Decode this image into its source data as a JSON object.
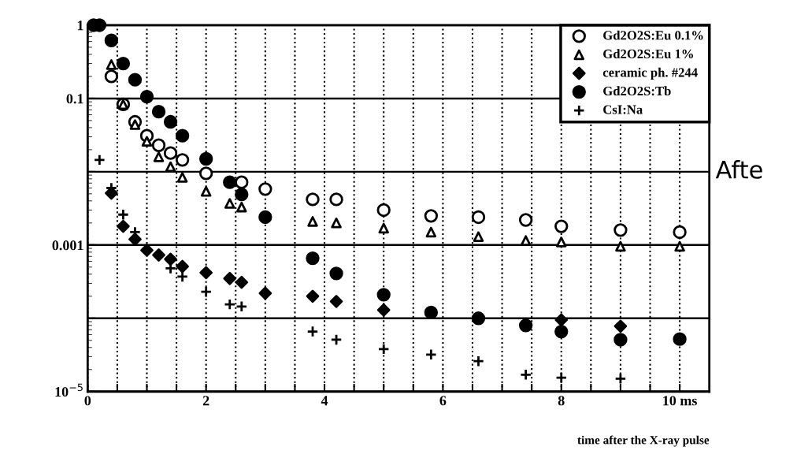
{
  "chart_data": {
    "type": "scatter",
    "xlabel": "time after the X-ray pulse",
    "xlim": [
      0,
      10.5
    ],
    "ylim": [
      1e-05,
      1
    ],
    "log": "y",
    "xticks": [
      0,
      {
        "value": 0.5,
        "label": null
      },
      {
        "value": 1,
        "label": null
      },
      {
        "value": 1.5,
        "label": null
      },
      2,
      {
        "value": 2.5,
        "label": null
      },
      {
        "value": 3,
        "label": null
      },
      {
        "value": 3.5,
        "label": null
      },
      4,
      {
        "value": 4.5,
        "label": null
      },
      {
        "value": 5,
        "label": null
      },
      {
        "value": 5.5,
        "label": null
      },
      6,
      {
        "value": 6.5,
        "label": null
      },
      {
        "value": 7,
        "label": null
      },
      {
        "value": 7.5,
        "label": null
      },
      8,
      {
        "value": 8.5,
        "label": null
      },
      {
        "value": 9,
        "label": null
      },
      {
        "value": 9.5,
        "label": null
      },
      {
        "value": 10,
        "label": "10 ms"
      }
    ],
    "yticks": [
      1,
      0.1,
      {
        "value": 0.01,
        "label": null
      },
      0.001,
      {
        "value": 0.0001,
        "label": null
      },
      {
        "value": 1e-05,
        "label": "10$^{−5}$"
      }
    ],
    "grid": true,
    "legend": "top right",
    "annotations": [
      "Afte"
    ],
    "series": [
      {
        "name": "Gd2O2S:Eu 0.1%",
        "color": "#000000",
        "marker": "circle",
        "x": [
          0.4,
          0.6,
          0.8,
          1.0,
          1.2,
          1.4,
          1.6,
          2.0,
          2.6,
          3.0,
          3.8,
          4.2,
          5.0,
          5.8,
          6.6,
          7.4,
          8.0,
          9.0,
          10.0
        ],
        "values": [
          0.2,
          0.083,
          0.048,
          0.031,
          0.023,
          0.018,
          0.0145,
          0.0095,
          0.0072,
          0.0058,
          0.0042,
          0.0042,
          0.003,
          0.0025,
          0.0024,
          0.0022,
          0.0018,
          0.0016,
          0.0015
        ]
      },
      {
        "name": "Gd2O2S:Eu 1%",
        "color": "#000000",
        "marker": "triangle",
        "x": [
          0.4,
          0.6,
          0.8,
          1.0,
          1.2,
          1.4,
          1.6,
          2.0,
          2.4,
          2.6,
          3.8,
          4.2,
          5.0,
          5.8,
          6.6,
          7.4,
          8.0,
          9.0,
          10.0
        ],
        "values": [
          0.29,
          0.083,
          0.044,
          0.026,
          0.016,
          0.0117,
          0.0084,
          0.0054,
          0.0037,
          0.0033,
          0.0021,
          0.002,
          0.0017,
          0.0015,
          0.0013,
          0.00115,
          0.0011,
          0.00096,
          0.00096
        ]
      },
      {
        "name": "ceramic ph. #244",
        "color": "#000000",
        "marker": "diamond",
        "x": [
          0.4,
          0.6,
          0.8,
          1.0,
          1.2,
          1.4,
          1.6,
          2.0,
          2.4,
          2.6,
          3.0,
          3.8,
          4.2,
          5.0,
          8.0,
          9.0
        ],
        "values": [
          0.0051,
          0.0018,
          0.0012,
          0.00085,
          0.00073,
          0.00064,
          0.00051,
          0.00042,
          0.00035,
          0.00031,
          0.00022,
          0.0002,
          0.00017,
          0.00013,
          9.5e-05,
          7.8e-05
        ]
      },
      {
        "name": "Gd2O2S:Tb",
        "color": "#000000",
        "marker": "circle",
        "x": [
          0.1,
          0.2,
          0.4,
          0.6,
          0.8,
          1.0,
          1.2,
          1.4,
          1.6,
          2.0,
          2.4,
          2.6,
          3.0,
          3.8,
          4.2,
          5.0,
          5.8,
          6.6,
          7.4,
          8.0,
          9.0,
          10.0
        ],
        "values": [
          1.0,
          1.0,
          0.62,
          0.3,
          0.18,
          0.106,
          0.066,
          0.048,
          0.031,
          0.015,
          0.0072,
          0.0049,
          0.0024,
          0.00066,
          0.00041,
          0.00021,
          0.00012,
          0.0001,
          8e-05,
          6.6e-05,
          5.1e-05,
          5.2e-05
        ]
      },
      {
        "name": "CsI:Na",
        "color": "#000000",
        "marker": "cross",
        "x": [
          0.2,
          0.4,
          0.6,
          0.8,
          1.4,
          1.6,
          2.0,
          2.4,
          2.6,
          3.8,
          4.2,
          5.0,
          5.8,
          6.6,
          7.4,
          8.0,
          9.0
        ],
        "values": [
          0.0145,
          0.006,
          0.0026,
          0.0015,
          0.00048,
          0.00037,
          0.00023,
          0.000155,
          0.000145,
          6.6e-05,
          5.1e-05,
          3.8e-05,
          3.2e-05,
          2.6e-05,
          1.7e-05,
          1.55e-05,
          1.5e-05
        ]
      }
    ]
  }
}
